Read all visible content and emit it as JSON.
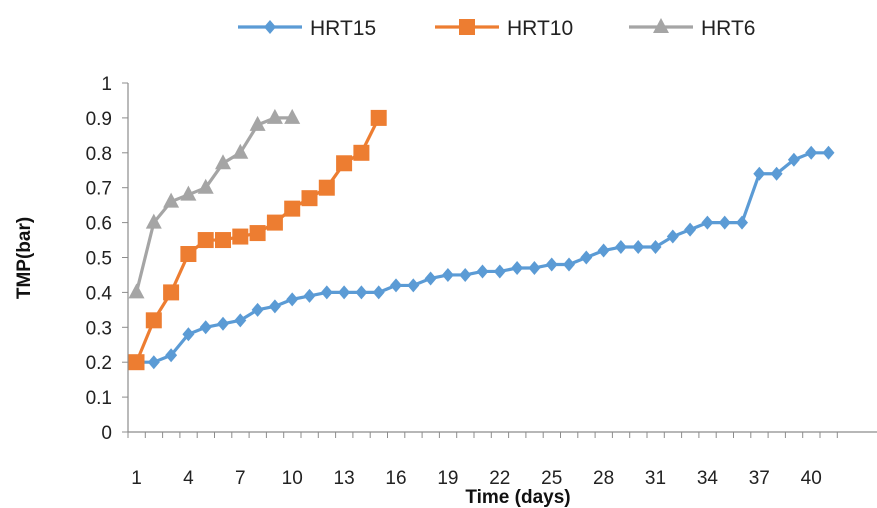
{
  "chart_data": {
    "type": "line",
    "xlabel": "Time (days)",
    "ylabel": "TMP(bar)",
    "xlim": [
      1,
      41
    ],
    "ylim": [
      0,
      1
    ],
    "x_ticks": [
      "1",
      "4",
      "7",
      "10",
      "13",
      "16",
      "19",
      "22",
      "25",
      "28",
      "31",
      "34",
      "37",
      "40"
    ],
    "y_ticks": [
      "0",
      "0.1",
      "0.2",
      "0.3",
      "0.4",
      "0.5",
      "0.6",
      "0.7",
      "0.8",
      "0.9",
      "1"
    ],
    "legend_position": "top",
    "grid": false,
    "series": [
      {
        "name": "HRT15",
        "color": "#5b9bd5",
        "marker": "diamond",
        "x": [
          1,
          2,
          3,
          4,
          5,
          6,
          7,
          8,
          9,
          10,
          11,
          12,
          13,
          14,
          15,
          16,
          17,
          18,
          19,
          20,
          21,
          22,
          23,
          24,
          25,
          26,
          27,
          28,
          29,
          30,
          31,
          32,
          33,
          34,
          35,
          36,
          37,
          38,
          39,
          40,
          41
        ],
        "values": [
          0.2,
          0.2,
          0.22,
          0.28,
          0.3,
          0.31,
          0.32,
          0.35,
          0.36,
          0.38,
          0.39,
          0.4,
          0.4,
          0.4,
          0.4,
          0.42,
          0.42,
          0.44,
          0.45,
          0.45,
          0.46,
          0.46,
          0.47,
          0.47,
          0.48,
          0.48,
          0.5,
          0.52,
          0.53,
          0.53,
          0.53,
          0.56,
          0.58,
          0.6,
          0.6,
          0.6,
          0.74,
          0.74,
          0.78,
          0.8,
          0.8
        ]
      },
      {
        "name": "HRT10",
        "color": "#ed7d31",
        "marker": "square",
        "x": [
          1,
          2,
          3,
          4,
          5,
          6,
          7,
          8,
          9,
          10,
          11,
          12,
          13,
          14,
          15
        ],
        "values": [
          0.2,
          0.32,
          0.4,
          0.51,
          0.55,
          0.55,
          0.56,
          0.57,
          0.6,
          0.64,
          0.67,
          0.7,
          0.77,
          0.8,
          0.9
        ]
      },
      {
        "name": "HRT6",
        "color": "#a5a5a5",
        "marker": "triangle",
        "x": [
          1,
          2,
          3,
          4,
          5,
          6,
          7,
          8,
          9,
          10
        ],
        "values": [
          0.4,
          0.6,
          0.66,
          0.68,
          0.7,
          0.77,
          0.8,
          0.88,
          0.9,
          0.9
        ]
      }
    ]
  }
}
